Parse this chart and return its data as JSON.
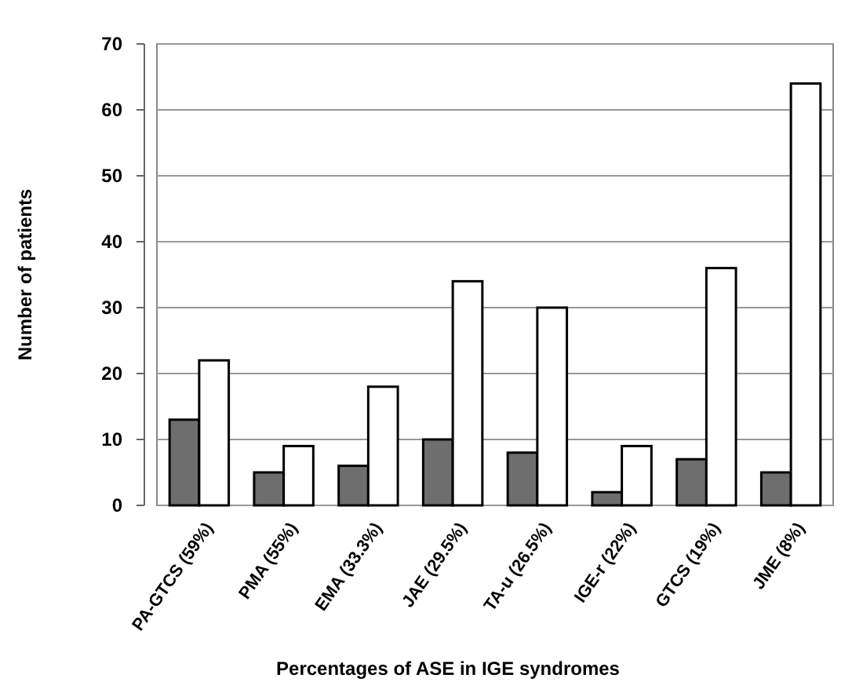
{
  "chart_data": {
    "type": "bar",
    "xlabel": "Percentages of ASE in IGE syndromes",
    "ylabel": "Number of patients",
    "categories": [
      "PA-GTCS (59%)",
      "PMA (55%)",
      "EMA (33.3%)",
      "JAE (29.5%)",
      "TA-u (26.5%)",
      "IGE-r (22%)",
      "GTCS (19%)",
      "JME (8%)"
    ],
    "series": [
      {
        "color": "#6e6e6e",
        "values": [
          13,
          5,
          6,
          10,
          8,
          2,
          7,
          5
        ]
      },
      {
        "color": "#ffffff",
        "values": [
          22,
          9,
          18,
          34,
          30,
          9,
          36,
          64
        ]
      }
    ],
    "ylim": [
      0,
      70
    ],
    "yticks": [
      0,
      10,
      20,
      30,
      40,
      50,
      60,
      70
    ],
    "grid": "y"
  }
}
